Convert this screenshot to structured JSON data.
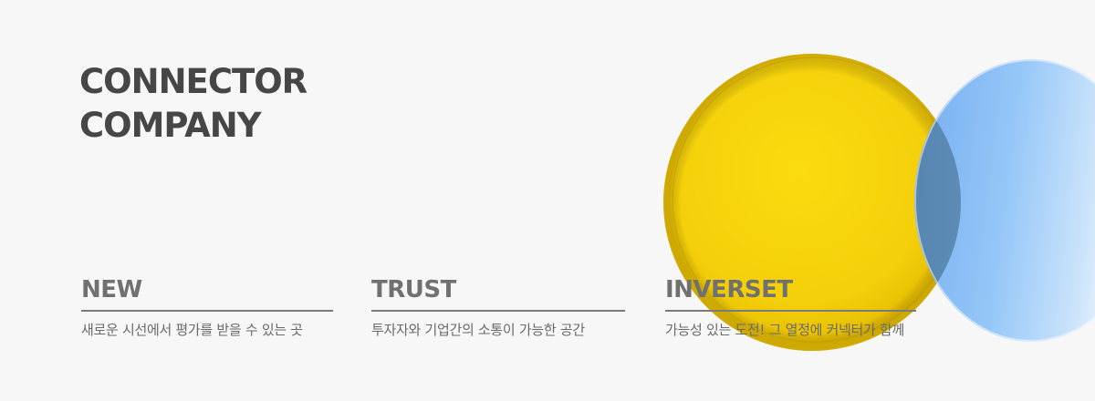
{
  "hero": {
    "title_line1": "CONNECTOR",
    "title_line2": "COMPANY"
  },
  "columns": [
    {
      "heading": "NEW",
      "description": "새로운 시선에서 평가를 받을 수 있는 곳"
    },
    {
      "heading": "TRUST",
      "description": "투자자와 기업간의 소통이 가능한 공간"
    },
    {
      "heading": "INVERSET",
      "description": "가능성 있는 도전! 그 열정에 커넥터가 함께"
    }
  ],
  "colors": {
    "background": "#f7f7f7",
    "yellow_disc": "#f6d20c",
    "blue_disc": "#8cc2f7",
    "title_text": "#464646"
  }
}
